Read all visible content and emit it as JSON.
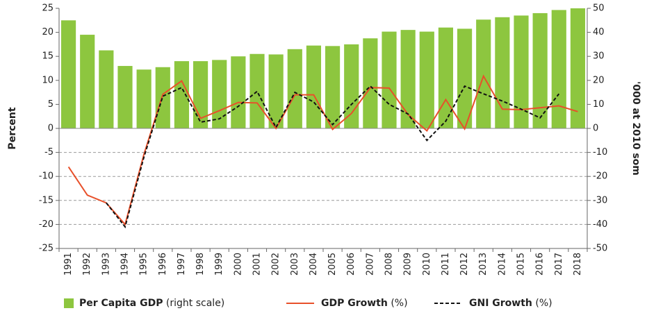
{
  "chart_data": {
    "type": "bar_line",
    "categories": [
      "1991",
      "1992",
      "1993",
      "1994",
      "1995",
      "1996",
      "1997",
      "1998",
      "1999",
      "2000",
      "2001",
      "2002",
      "2003",
      "2004",
      "2005",
      "2006",
      "2007",
      "2008",
      "2009",
      "2010",
      "2011",
      "2012",
      "2013",
      "2014",
      "2015",
      "2016",
      "2017",
      "2018"
    ],
    "y_label": "Percent",
    "y2_label": "'000 at 2010 som",
    "ylim": [
      -25,
      25
    ],
    "yticks": [
      -25,
      -20,
      -15,
      -10,
      -5,
      0,
      5,
      10,
      15,
      20,
      25
    ],
    "y2lim": [
      -50,
      50
    ],
    "y2ticks": [
      -50,
      -40,
      -30,
      -20,
      -10,
      0,
      10,
      20,
      30,
      40,
      50
    ],
    "grid": true,
    "series": [
      {
        "name": "Per Capita GDP",
        "name_suffix": "(right scale)",
        "type": "bar",
        "axis": "y2",
        "color": "#8dc63f",
        "values": [
          45,
          39,
          32.5,
          26,
          24.5,
          25.5,
          28,
          28,
          28.5,
          30,
          31,
          30.8,
          33,
          34.5,
          34.3,
          35,
          37.5,
          40.3,
          41,
          40.3,
          42,
          41.5,
          45.3,
          46.3,
          47,
          48,
          49.3,
          50
        ]
      },
      {
        "name": "GDP Growth",
        "name_suffix": "(%)",
        "type": "line",
        "color": "#e8502a",
        "values": [
          -8,
          -13.9,
          -15.5,
          -20,
          -5.4,
          7.1,
          9.9,
          2.1,
          3.7,
          5.4,
          5.3,
          0,
          7,
          7,
          -0.2,
          3.1,
          8.5,
          8.4,
          2.9,
          -0.5,
          6,
          -0.1,
          10.9,
          4,
          3.9,
          4.3,
          4.7,
          3.5
        ]
      },
      {
        "name": "GNI Growth",
        "name_suffix": "(%)",
        "type": "line",
        "dashed": true,
        "color": "#111111",
        "values": [
          null,
          null,
          -15.5,
          -20.5,
          -6,
          6.7,
          8.5,
          1.3,
          2,
          4.6,
          7.7,
          0.2,
          7.5,
          5.5,
          0.8,
          5,
          8.8,
          5,
          3,
          -2.5,
          1.5,
          8.8,
          7.2,
          5.7,
          4,
          2.2,
          7.2,
          null
        ]
      }
    ]
  }
}
